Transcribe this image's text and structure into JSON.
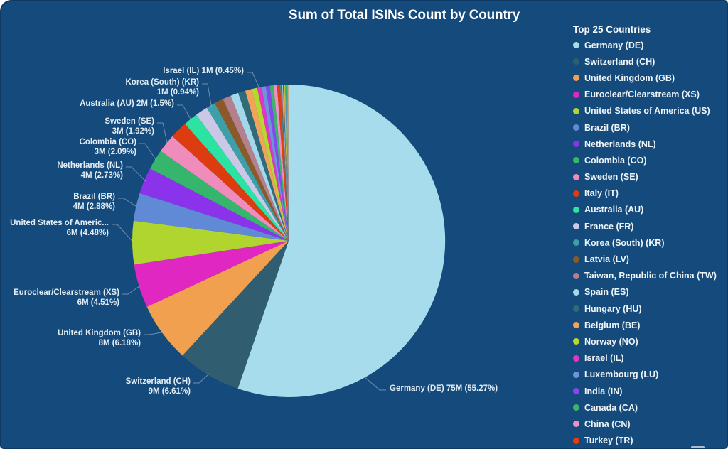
{
  "ui": {
    "page_background": "#ffffff",
    "panel_background": "#144a7c",
    "panel_border": "#0d3a64",
    "title_color": "#ffffff",
    "label_color": "#e4edf4",
    "leader_line_color": "#b9c9d6",
    "scrollbar_color": "#a9bdd3"
  },
  "chart_data": {
    "type": "pie",
    "title": "Sum of Total ISINs Count by Country",
    "legend_title": "Top 25 Countries",
    "legend_position": "right",
    "slices": [
      {
        "label": "Germany (DE)",
        "color": "#a6dcec",
        "pct": 55.27,
        "value_text": "75M",
        "callout_lines": [
          "Germany (DE) 75M (55.27%)"
        ]
      },
      {
        "label": "Switzerland (CH)",
        "color": "#305d70",
        "pct": 6.61,
        "value_text": "9M",
        "callout_lines": [
          "Switzerland (CH)",
          "9M (6.61%)"
        ]
      },
      {
        "label": "United Kingdom (GB)",
        "color": "#f0a04e",
        "pct": 6.18,
        "value_text": "8M",
        "callout_lines": [
          "United Kingdom (GB)",
          "8M (6.18%)"
        ]
      },
      {
        "label": "Euroclear/Clearstream (XS)",
        "color": "#e127c2",
        "pct": 4.51,
        "value_text": "6M",
        "callout_lines": [
          "Euroclear/Clearstream (XS)",
          "6M (4.51%)"
        ]
      },
      {
        "label": "United States of America (US)",
        "color": "#b0d52e",
        "pct": 4.48,
        "value_text": "6M",
        "callout_lines": [
          "United States of Americ...",
          "6M (4.48%)"
        ]
      },
      {
        "label": "Brazil (BR)",
        "color": "#6089d6",
        "pct": 2.88,
        "value_text": "4M",
        "callout_lines": [
          "Brazil (BR)",
          "4M (2.88%)"
        ]
      },
      {
        "label": "Netherlands (NL)",
        "color": "#8b33eb",
        "pct": 2.73,
        "value_text": "4M",
        "callout_lines": [
          "Netherlands (NL)",
          "4M (2.73%)"
        ]
      },
      {
        "label": "Colombia (CO)",
        "color": "#36b56d",
        "pct": 2.09,
        "value_text": "3M",
        "callout_lines": [
          "Colombia (CO)",
          "3M (2.09%)"
        ]
      },
      {
        "label": "Sweden (SE)",
        "color": "#ef8cbc",
        "pct": 1.92,
        "value_text": "3M",
        "callout_lines": [
          "Sweden (SE)",
          "3M (1.92%)"
        ]
      },
      {
        "label": "Italy (IT)",
        "color": "#dd3b10",
        "pct": 1.78,
        "pct_estimated": true
      },
      {
        "label": "Australia (AU)",
        "color": "#2ce3a4",
        "pct": 1.5,
        "value_text": "2M",
        "callout_lines": [
          "Australia (AU) 2M (1.5%)"
        ]
      },
      {
        "label": "France (FR)",
        "color": "#cbc7e6",
        "pct": 1.28,
        "pct_estimated": true
      },
      {
        "label": "Korea (South) (KR)",
        "color": "#3d9fa7",
        "pct": 0.94,
        "value_text": "1M",
        "callout_lines": [
          "Korea (South) (KR)",
          "1M (0.94%)"
        ]
      },
      {
        "label": "Latvia (LV)",
        "color": "#8c5a28",
        "pct": 0.92,
        "pct_estimated": true
      },
      {
        "label": "Taiwan, Republic of China (TW)",
        "color": "#b5808d",
        "pct": 0.87,
        "pct_estimated": true
      },
      {
        "label": "Spain (ES)",
        "color": "#a4d7e9",
        "pct": 0.81,
        "pct_estimated": true
      },
      {
        "label": "Hungary (HU)",
        "color": "#2f6b79",
        "pct": 0.75,
        "pct_estimated": true
      },
      {
        "label": "Belgium (BE)",
        "color": "#f0a45b",
        "pct": 0.69,
        "pct_estimated": true
      },
      {
        "label": "Norway (NO)",
        "color": "#b4da2d",
        "pct": 0.57,
        "pct_estimated": true
      },
      {
        "label": "Israel (IL)",
        "color": "#e235c7",
        "pct": 0.45,
        "value_text": "1M",
        "callout_lines": [
          "Israel (IL) 1M (0.45%)"
        ]
      },
      {
        "label": "Luxembourg (LU)",
        "color": "#6e93dd",
        "pct": 0.44,
        "pct_estimated": true
      },
      {
        "label": "India (IN)",
        "color": "#8a45f0",
        "pct": 0.41,
        "pct_estimated": true
      },
      {
        "label": "Canada (CA)",
        "color": "#3cb46f",
        "pct": 0.38,
        "pct_estimated": true
      },
      {
        "label": "China (CN)",
        "color": "#ee8fc2",
        "pct": 0.35,
        "pct_estimated": true
      },
      {
        "label": "Turkey (TR)",
        "color": "#e23f10",
        "pct": 0.32,
        "pct_estimated": true
      }
    ],
    "others": {
      "pct": 0.87,
      "pct_estimated": true,
      "description": "Additional countries beyond top 25 rendered as thin unlabeled slivers",
      "sliver_colors": [
        "#3d9fa7",
        "#8c5a28",
        "#b5808d",
        "#a4d7e9",
        "#2f6b79",
        "#f0a45b",
        "#b4da2d",
        "#6e93dd",
        "#3cb46f",
        "#ee8fc2",
        "#8a9bb0",
        "#c8b28a"
      ]
    }
  }
}
